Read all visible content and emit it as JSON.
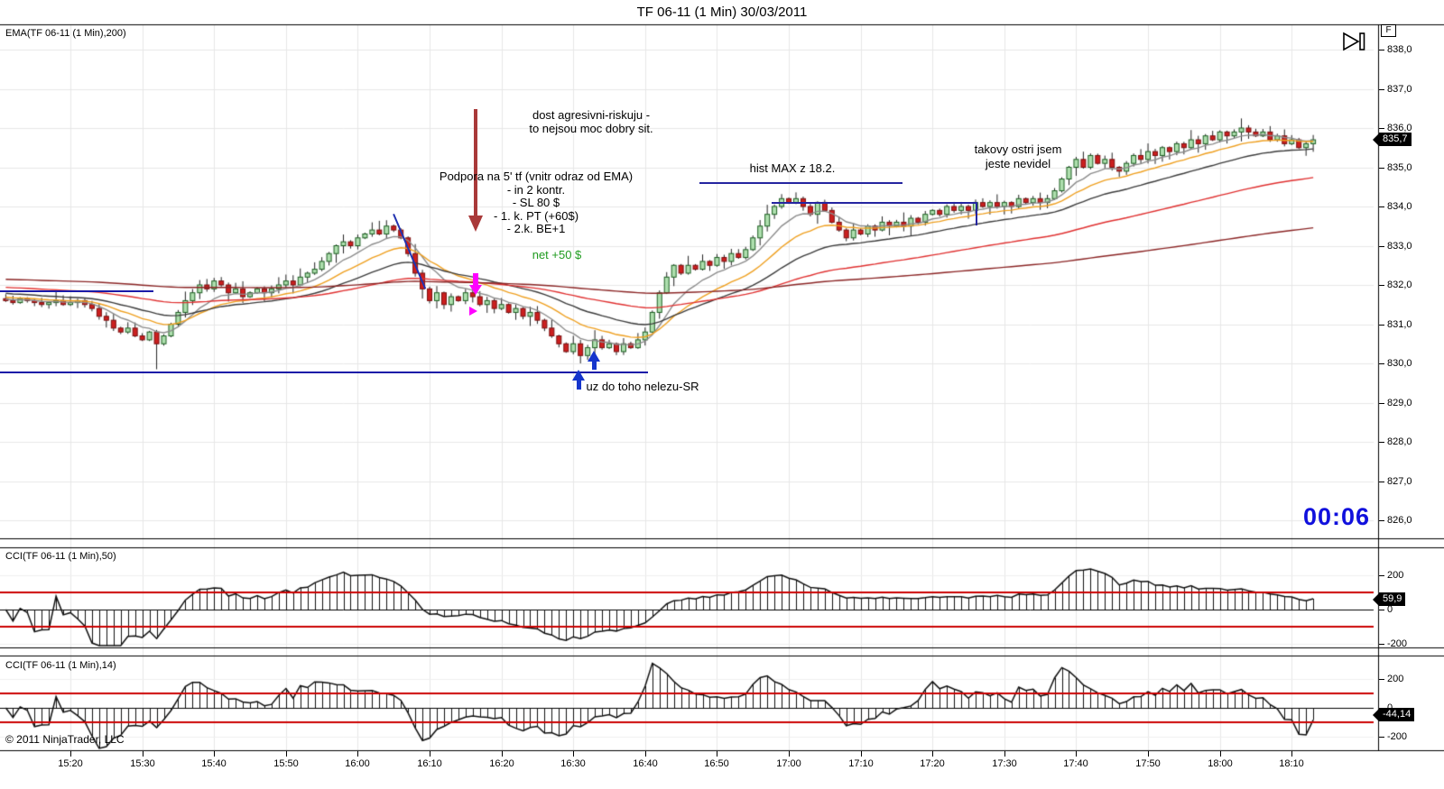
{
  "window": {
    "title": "TF 06-11 (1 Min)  30/03/2011"
  },
  "price_panel": {
    "indicator_label": "EMA(TF 06-11 (1 Min),200)",
    "price_badge": "835,7",
    "timer": "00:06"
  },
  "cci50_panel": {
    "label": "CCI(TF 06-11 (1 Min),50)",
    "badge": "59,9"
  },
  "cci14_panel": {
    "label": "CCI(TF 06-11 (1 Min),14)",
    "badge": "-44,14"
  },
  "copyright": "© 2011 NinjaTrader, LLC",
  "icons": {
    "skip_to_end": "skip-to-end",
    "f_button": "F"
  },
  "annotations": {
    "dost": {
      "lines": [
        "dost agresivni-riskuju -",
        "to nejsou moc dobry sit."
      ]
    },
    "podpora": {
      "lines": [
        "Podpora na 5' tf (vnitr odraz od EMA)",
        "- in 2 kontr.",
        "- SL 80 $",
        "- 1. k. PT (+60$)",
        "- 2.k. BE+1"
      ]
    },
    "net": "net +50 $",
    "histmax": "hist MAX z 18.2.",
    "takovy": {
      "lines": [
        "takovy ostri jsem",
        "jeste nevidel"
      ]
    },
    "uz": "uz do toho nelezu-SR"
  },
  "colors": {
    "candle_up_fill": "#aedfae",
    "candle_up_border": "#1b5e20",
    "candle_down_fill": "#cc1f1f",
    "candle_down_border": "#7a0f0f",
    "wick": "#222222",
    "grid": "#e7e7e7",
    "grid_light": "#efefef",
    "threshold_red": "#cc0000",
    "cci_line": "#111111",
    "drawing_blue": "#1a1aa8",
    "arrow_blue": "#1535cc",
    "arrow_red": "#a93939",
    "magenta": "#ff00ff",
    "timer_blue": "#1010dd"
  },
  "time_axis": {
    "labels": [
      "15:20",
      "15:30",
      "15:40",
      "15:50",
      "16:00",
      "16:10",
      "16:20",
      "16:30",
      "16:40",
      "16:50",
      "17:00",
      "17:10",
      "17:20",
      "17:30",
      "17:40",
      "17:50",
      "18:00",
      "18:10"
    ]
  },
  "chart_data": [
    {
      "type": "candlestick",
      "panel": "price",
      "title": "TF 06-11 (1 Min)  30/03/2011",
      "start_time": "15:11",
      "step_minutes": 1,
      "ylim": [
        825.5,
        838.6
      ],
      "y_ticks": {
        "labels": [
          "838,0",
          "837,0",
          "836,0",
          "835,0",
          "834,0",
          "833,0",
          "832,0",
          "831,0",
          "830,0",
          "829,0",
          "828,0",
          "827,0",
          "826,0"
        ],
        "values": [
          838,
          837,
          836,
          835,
          834,
          833,
          832,
          831,
          830,
          829,
          828,
          827,
          826
        ]
      },
      "last_price": 835.7,
      "closes": [
        831.6,
        831.55,
        831.65,
        831.6,
        831.55,
        831.5,
        831.55,
        831.6,
        831.5,
        831.55,
        831.6,
        831.5,
        831.4,
        831.2,
        831.1,
        830.9,
        830.8,
        830.9,
        830.7,
        830.6,
        830.8,
        830.5,
        830.7,
        831.0,
        831.3,
        831.6,
        831.8,
        832.0,
        831.9,
        832.1,
        832.0,
        831.8,
        831.9,
        831.7,
        831.8,
        831.9,
        831.8,
        831.9,
        832.0,
        832.1,
        832.0,
        832.2,
        832.3,
        832.4,
        832.6,
        832.8,
        833.0,
        833.1,
        833.0,
        833.2,
        833.3,
        833.4,
        833.3,
        833.5,
        833.4,
        833.2,
        832.8,
        832.3,
        831.9,
        831.6,
        831.8,
        831.5,
        831.7,
        831.6,
        831.8,
        831.7,
        831.5,
        831.6,
        831.4,
        831.5,
        831.3,
        831.4,
        831.2,
        831.3,
        831.1,
        830.9,
        830.7,
        830.5,
        830.3,
        830.5,
        830.2,
        830.4,
        830.6,
        830.4,
        830.5,
        830.3,
        830.5,
        830.4,
        830.6,
        830.8,
        831.3,
        831.8,
        832.2,
        832.5,
        832.3,
        832.5,
        832.4,
        832.6,
        832.5,
        832.7,
        832.6,
        832.8,
        832.7,
        832.9,
        833.2,
        833.5,
        833.8,
        834.0,
        834.2,
        834.1,
        834.2,
        834.0,
        833.8,
        834.1,
        833.9,
        833.6,
        833.4,
        833.2,
        833.4,
        833.3,
        833.5,
        833.4,
        833.6,
        833.5,
        833.6,
        833.5,
        833.7,
        833.6,
        833.8,
        833.9,
        833.8,
        834.0,
        833.9,
        834.0,
        833.9,
        834.1,
        834.0,
        834.1,
        834.0,
        834.1,
        834.0,
        834.2,
        834.1,
        834.2,
        834.1,
        834.2,
        834.4,
        834.7,
        835.0,
        835.2,
        835.0,
        835.3,
        835.1,
        835.2,
        835.0,
        834.9,
        835.1,
        835.3,
        835.2,
        835.4,
        835.3,
        835.5,
        835.4,
        835.6,
        835.5,
        835.7,
        835.6,
        835.8,
        835.7,
        835.9,
        835.8,
        835.9,
        836.0,
        835.9,
        835.8,
        835.9,
        835.7,
        835.8,
        835.6,
        835.7,
        835.5,
        835.6,
        835.7
      ],
      "special_lows": {
        "21": 829.85,
        "80": 830.0,
        "82": 830.05
      },
      "special_highs": {
        "53": 833.65
      },
      "emas": [
        {
          "period": 8,
          "color": "#8c8c8c",
          "seed": 831.65
        },
        {
          "period": 16,
          "color": "#efa020",
          "seed": 831.7
        },
        {
          "period": 30,
          "color": "#3c3c3c",
          "seed": 831.8
        },
        {
          "period": 70,
          "color": "#e03030",
          "seed": 831.95
        },
        {
          "period": 200,
          "color": "#8b2525",
          "seed": 832.15
        }
      ]
    },
    {
      "type": "line",
      "panel": "cci50",
      "label": "CCI(TF 06-11 (1 Min),50)",
      "period": 50,
      "source": "CCI computed from candlestick series",
      "thresholds": [
        100,
        -100
      ],
      "zero_line": 0,
      "last_value": 59.9,
      "y_ticks": {
        "labels": [
          "200",
          "0",
          "-200"
        ],
        "values": [
          200,
          0,
          -200
        ]
      }
    },
    {
      "type": "line",
      "panel": "cci14",
      "label": "CCI(TF 06-11 (1 Min),14)",
      "period": 14,
      "source": "CCI computed from candlestick series",
      "thresholds": [
        100,
        -100
      ],
      "zero_line": 0,
      "last_value": -44.14,
      "y_ticks": {
        "labels": [
          "200",
          "0",
          "-200"
        ],
        "values": [
          200,
          0,
          -200
        ]
      }
    }
  ]
}
